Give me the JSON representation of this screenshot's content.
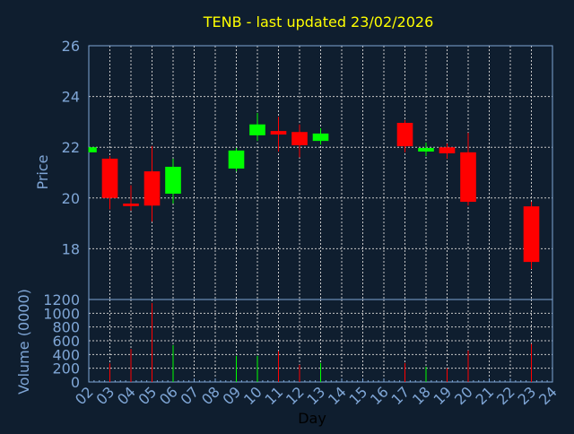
{
  "chart_data": [
    {
      "type": "candlestick",
      "title": "TENB - last updated 23/02/2026",
      "ylabel": "Price",
      "ylim": [
        16,
        26
      ],
      "yticks": [
        18,
        20,
        22,
        24,
        26
      ],
      "grid": true,
      "colors": {
        "up": "#00ff00",
        "down": "#ff0000",
        "background": "#0f1e2f",
        "axis": "#7fa6d6",
        "title": "#ffff00",
        "grid": "#c8c8c8"
      },
      "candles": [
        {
          "day": 2,
          "open": 21.8,
          "high": 22.0,
          "low": 21.8,
          "close": 22.0
        },
        {
          "day": 3,
          "open": 21.55,
          "high": 21.65,
          "low": 19.55,
          "close": 20.0
        },
        {
          "day": 4,
          "open": 19.78,
          "high": 20.5,
          "low": 19.5,
          "close": 19.68
        },
        {
          "day": 5,
          "open": 21.05,
          "high": 22.05,
          "low": 19.07,
          "close": 19.7
        },
        {
          "day": 6,
          "open": 20.17,
          "high": 21.55,
          "low": 19.78,
          "close": 21.23
        },
        {
          "day": 9,
          "open": 21.16,
          "high": 21.97,
          "low": 21.05,
          "close": 21.87
        },
        {
          "day": 10,
          "open": 22.47,
          "high": 23.35,
          "low": 22.25,
          "close": 22.9
        },
        {
          "day": 11,
          "open": 22.64,
          "high": 23.2,
          "low": 21.83,
          "close": 22.5
        },
        {
          "day": 12,
          "open": 22.6,
          "high": 22.9,
          "low": 21.6,
          "close": 22.08
        },
        {
          "day": 13,
          "open": 22.25,
          "high": 22.75,
          "low": 22.1,
          "close": 22.54
        },
        {
          "day": 17,
          "open": 22.96,
          "high": 23.07,
          "low": 21.8,
          "close": 22.04
        },
        {
          "day": 18,
          "open": 21.83,
          "high": 22.18,
          "low": 21.65,
          "close": 21.97
        },
        {
          "day": 19,
          "open": 22.0,
          "high": 22.15,
          "low": 21.55,
          "close": 21.76
        },
        {
          "day": 20,
          "open": 21.8,
          "high": 22.57,
          "low": 19.7,
          "close": 19.85
        },
        {
          "day": 23,
          "open": 19.67,
          "high": 19.85,
          "low": 17.2,
          "close": 17.48
        }
      ]
    },
    {
      "type": "bar",
      "ylabel": "Volume (0000)",
      "xlabel": "Day",
      "ylim": [
        0,
        1200
      ],
      "yticks": [
        0,
        200,
        400,
        600,
        800,
        1000,
        1200
      ],
      "xticks": [
        "02",
        "03",
        "04",
        "05",
        "06",
        "07",
        "08",
        "09",
        "10",
        "11",
        "12",
        "13",
        "14",
        "15",
        "16",
        "17",
        "18",
        "19",
        "20",
        "21",
        "22",
        "23",
        "24"
      ],
      "xlim": [
        2,
        24
      ],
      "grid": true,
      "bars": [
        {
          "day": 3,
          "value": 270,
          "direction": "down"
        },
        {
          "day": 4,
          "value": 480,
          "direction": "down"
        },
        {
          "day": 5,
          "value": 1150,
          "direction": "down"
        },
        {
          "day": 6,
          "value": 537,
          "direction": "up"
        },
        {
          "day": 9,
          "value": 380,
          "direction": "up"
        },
        {
          "day": 10,
          "value": 380,
          "direction": "up"
        },
        {
          "day": 11,
          "value": 450,
          "direction": "down"
        },
        {
          "day": 12,
          "value": 250,
          "direction": "down"
        },
        {
          "day": 13,
          "value": 275,
          "direction": "up"
        },
        {
          "day": 17,
          "value": 275,
          "direction": "down"
        },
        {
          "day": 18,
          "value": 222,
          "direction": "up"
        },
        {
          "day": 19,
          "value": 200,
          "direction": "down"
        },
        {
          "day": 20,
          "value": 458,
          "direction": "down"
        },
        {
          "day": 23,
          "value": 554,
          "direction": "down"
        }
      ]
    }
  ]
}
